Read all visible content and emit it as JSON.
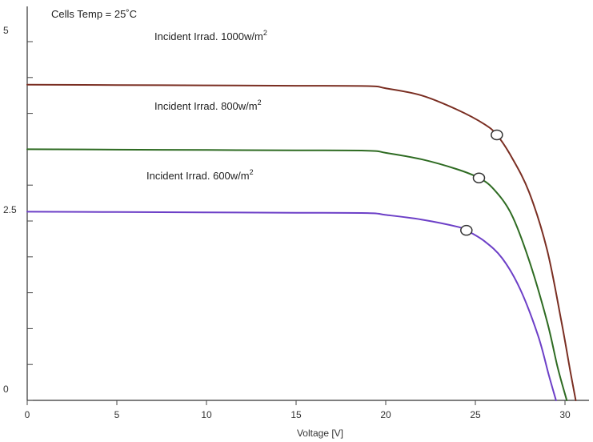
{
  "chart_data": {
    "type": "line",
    "title": "Cells Temp = 25˚C",
    "xlabel": "Voltage [V]",
    "ylabel": "",
    "xlim": [
      0,
      31
    ],
    "ylim": [
      0,
      5
    ],
    "x_ticks": [
      0,
      5,
      10,
      15,
      20,
      25,
      30
    ],
    "x_tick_labels": [
      "0",
      "5",
      "10",
      "15",
      "20",
      "25",
      "30"
    ],
    "y_ticks": [
      0,
      0.5,
      1,
      1.5,
      2,
      2.5,
      3,
      3.5,
      4,
      4.5,
      5
    ],
    "y_tick_labels": [
      {
        "value": 0,
        "label": "0"
      },
      {
        "value": 2.5,
        "label": "2.5"
      },
      {
        "value": 5,
        "label": "5"
      }
    ],
    "grid": false,
    "series": [
      {
        "name": "Incident Irrad. 1000w/m",
        "superscript": "2",
        "color": "#7a2e22",
        "points": [
          [
            0,
            4.4
          ],
          [
            5,
            4.395
          ],
          [
            10,
            4.39
          ],
          [
            15,
            4.385
          ],
          [
            19,
            4.38
          ],
          [
            20,
            4.35
          ],
          [
            22,
            4.25
          ],
          [
            24,
            4.05
          ],
          [
            25.5,
            3.85
          ],
          [
            26.2,
            3.7
          ],
          [
            27,
            3.4
          ],
          [
            28,
            2.9
          ],
          [
            29,
            2.1
          ],
          [
            29.8,
            1.1
          ],
          [
            30.3,
            0.4
          ],
          [
            30.6,
            0
          ]
        ],
        "mpp": [
          26.2,
          3.7
        ]
      },
      {
        "name": "Incident Irrad. 800w/m",
        "superscript": "2",
        "color": "#2e6b22",
        "points": [
          [
            0,
            3.5
          ],
          [
            5,
            3.495
          ],
          [
            10,
            3.49
          ],
          [
            15,
            3.485
          ],
          [
            19,
            3.48
          ],
          [
            20,
            3.45
          ],
          [
            22,
            3.36
          ],
          [
            24,
            3.22
          ],
          [
            25.2,
            3.1
          ],
          [
            26,
            2.95
          ],
          [
            27,
            2.6
          ],
          [
            28,
            1.95
          ],
          [
            29,
            1.1
          ],
          [
            29.6,
            0.45
          ],
          [
            30.1,
            0
          ]
        ],
        "mpp": [
          25.2,
          3.1
        ]
      },
      {
        "name": "Incident Irrad. 600w/m",
        "superscript": "2",
        "color": "#6c3fc7",
        "points": [
          [
            0,
            2.63
          ],
          [
            5,
            2.625
          ],
          [
            10,
            2.62
          ],
          [
            15,
            2.615
          ],
          [
            19,
            2.61
          ],
          [
            20,
            2.585
          ],
          [
            22,
            2.52
          ],
          [
            24,
            2.42
          ],
          [
            24.5,
            2.37
          ],
          [
            25.5,
            2.22
          ],
          [
            26.5,
            1.98
          ],
          [
            27.5,
            1.55
          ],
          [
            28.5,
            0.9
          ],
          [
            29.1,
            0.35
          ],
          [
            29.5,
            0
          ]
        ],
        "mpp": [
          24.5,
          2.37
        ]
      }
    ]
  }
}
